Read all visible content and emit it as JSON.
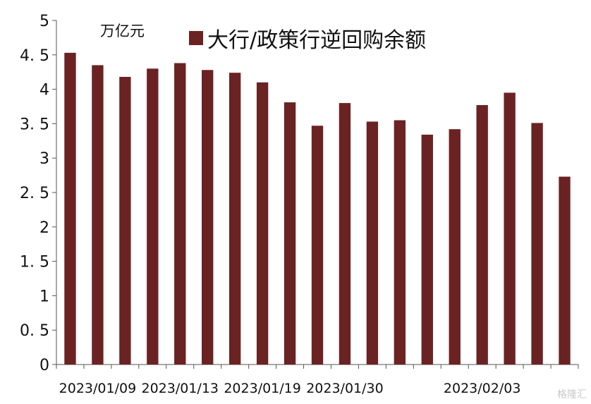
{
  "chart_data": {
    "type": "bar",
    "unit": "万亿元",
    "series": [
      {
        "name": "大行/政策行逆回购余额",
        "color": "#6b2222",
        "values": [
          4.53,
          4.35,
          4.18,
          4.3,
          4.38,
          4.28,
          4.24,
          4.1,
          3.81,
          3.47,
          3.8,
          3.53,
          3.55,
          3.34,
          3.42,
          3.77,
          3.95,
          3.51,
          2.73
        ]
      }
    ],
    "categories": [
      "",
      "2023/01/09",
      "",
      "",
      "2023/01/13",
      "",
      "",
      "2023/01/19",
      "",
      "",
      "2023/01/30",
      "",
      "",
      "",
      "",
      "2023/02/03",
      "",
      "",
      ""
    ],
    "x_tick_labels": [
      "2023/01/09",
      "2023/01/13",
      "2023/01/19",
      "2023/01/30",
      "2023/02/03"
    ],
    "y_tick_labels": [
      "0",
      "0. 5",
      "1",
      "1. 5",
      "2",
      "2. 5",
      "3",
      "3. 5",
      "4",
      "4. 5",
      "5"
    ],
    "ylim": [
      0,
      5
    ],
    "grid": false,
    "legend": "top"
  },
  "watermark": "格隆汇"
}
